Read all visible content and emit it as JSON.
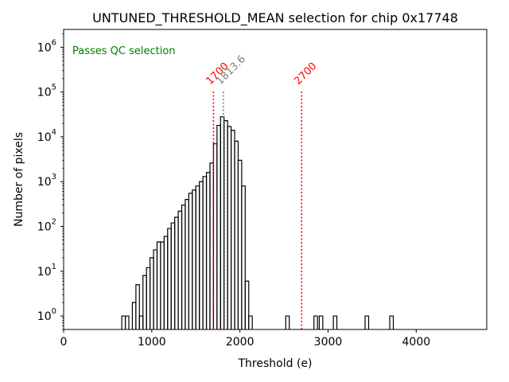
{
  "chart_data": {
    "type": "histogram",
    "title": "UNTUNED_THRESHOLD_MEAN selection for chip 0x17748",
    "xlabel": "Threshold (e)",
    "ylabel": "Number of pixels",
    "xlim": [
      0,
      4800
    ],
    "ylim": [
      0.5,
      2500000
    ],
    "yscale": "log",
    "bin_width": 40,
    "x_ticks": [
      {
        "value": 0,
        "label": "0"
      },
      {
        "value": 1000,
        "label": "1000"
      },
      {
        "value": 2000,
        "label": "2000"
      },
      {
        "value": 3000,
        "label": "3000"
      },
      {
        "value": 4000,
        "label": "4000"
      }
    ],
    "y_ticks": [
      {
        "value": 1,
        "base": "10",
        "exp": "0"
      },
      {
        "value": 10,
        "base": "10",
        "exp": "1"
      },
      {
        "value": 100,
        "base": "10",
        "exp": "2"
      },
      {
        "value": 1000,
        "base": "10",
        "exp": "3"
      },
      {
        "value": 10000,
        "base": "10",
        "exp": "4"
      },
      {
        "value": 100000,
        "base": "10",
        "exp": "5"
      },
      {
        "value": 1000000,
        "base": "10",
        "exp": "6"
      }
    ],
    "bins": [
      {
        "x": 660,
        "count": 1
      },
      {
        "x": 700,
        "count": 1
      },
      {
        "x": 740,
        "count": 0
      },
      {
        "x": 780,
        "count": 2
      },
      {
        "x": 820,
        "count": 5
      },
      {
        "x": 860,
        "count": 1
      },
      {
        "x": 900,
        "count": 8
      },
      {
        "x": 940,
        "count": 12
      },
      {
        "x": 980,
        "count": 20
      },
      {
        "x": 1020,
        "count": 30
      },
      {
        "x": 1060,
        "count": 45
      },
      {
        "x": 1100,
        "count": 45
      },
      {
        "x": 1140,
        "count": 60
      },
      {
        "x": 1180,
        "count": 90
      },
      {
        "x": 1220,
        "count": 120
      },
      {
        "x": 1260,
        "count": 160
      },
      {
        "x": 1300,
        "count": 220
      },
      {
        "x": 1340,
        "count": 300
      },
      {
        "x": 1380,
        "count": 400
      },
      {
        "x": 1420,
        "count": 550
      },
      {
        "x": 1460,
        "count": 650
      },
      {
        "x": 1500,
        "count": 800
      },
      {
        "x": 1540,
        "count": 1000
      },
      {
        "x": 1580,
        "count": 1300
      },
      {
        "x": 1620,
        "count": 1600
      },
      {
        "x": 1660,
        "count": 2600
      },
      {
        "x": 1700,
        "count": 7000
      },
      {
        "x": 1740,
        "count": 18000
      },
      {
        "x": 1780,
        "count": 28000
      },
      {
        "x": 1820,
        "count": 23000
      },
      {
        "x": 1860,
        "count": 17000
      },
      {
        "x": 1900,
        "count": 14000
      },
      {
        "x": 1940,
        "count": 8000
      },
      {
        "x": 1980,
        "count": 3000
      },
      {
        "x": 2020,
        "count": 800
      },
      {
        "x": 2060,
        "count": 6
      },
      {
        "x": 2100,
        "count": 1
      },
      {
        "x": 2520,
        "count": 1
      },
      {
        "x": 2840,
        "count": 1
      },
      {
        "x": 2900,
        "count": 1
      },
      {
        "x": 3060,
        "count": 1
      },
      {
        "x": 3420,
        "count": 1
      },
      {
        "x": 3700,
        "count": 1
      }
    ],
    "cut_lines": [
      {
        "value": 1700,
        "label": "1700",
        "color": "#ff0000",
        "style": "dotted"
      },
      {
        "value": 1813.6,
        "label": "1813.6",
        "color": "#808080",
        "style": "dotted"
      },
      {
        "value": 2700,
        "label": "2700",
        "color": "#ff0000",
        "style": "dotted"
      }
    ],
    "annotation": {
      "text": "Passes QC selection",
      "color": "#008000",
      "placement": "top-left"
    },
    "histogram_color": "#000000",
    "grid": false
  }
}
